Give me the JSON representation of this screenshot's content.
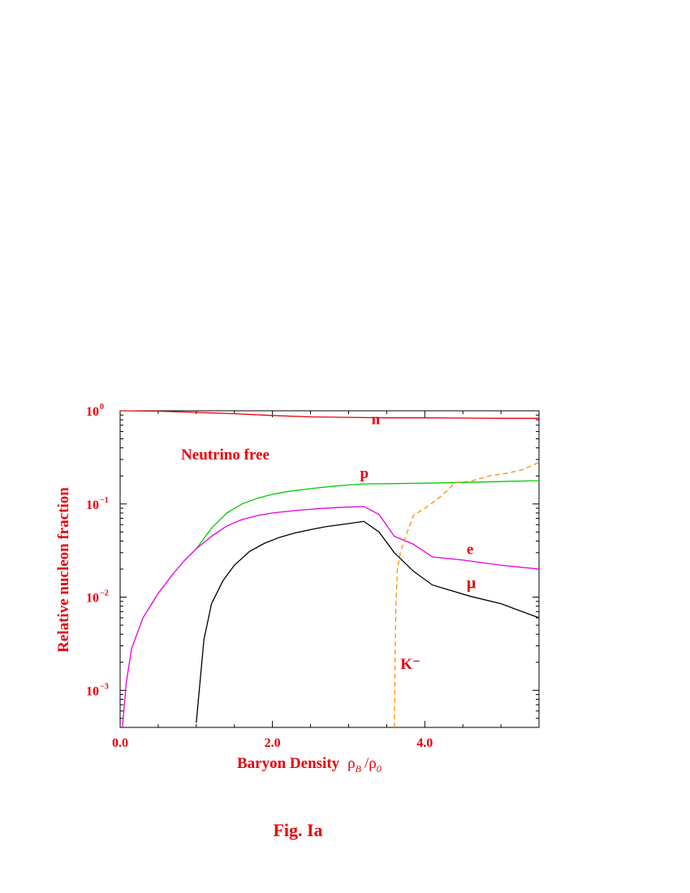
{
  "figure_caption": "Fig. Ia",
  "chart_data": {
    "type": "line",
    "xlabel": "Baryon Density",
    "xlabel_symbol": {
      "rho": "ρ",
      "B": "B",
      "slash": "/",
      "zero": "0"
    },
    "ylabel": "Relative nucleon fraction",
    "xlim": [
      0,
      5.5
    ],
    "ylim": [
      0.0004,
      1
    ],
    "yscale": "log",
    "grid": false,
    "x_ticks": [
      {
        "value": 0,
        "label": "0.0"
      },
      {
        "value": 2,
        "label": "2.0"
      },
      {
        "value": 4,
        "label": "4.0"
      }
    ],
    "y_ticks": [
      {
        "value": 1,
        "base": "10",
        "exp": "0"
      },
      {
        "value": 0.1,
        "base": "10",
        "exp": "−1"
      },
      {
        "value": 0.01,
        "base": "10",
        "exp": "−2"
      },
      {
        "value": 0.001,
        "base": "10",
        "exp": "−3"
      }
    ],
    "annotation": {
      "text": "Neutrino free",
      "x": 0.8,
      "y": 0.3
    },
    "series": [
      {
        "name": "n",
        "color": "#e8000b",
        "dash": "none",
        "label": {
          "x": 3.3,
          "y": 0.72
        },
        "points": [
          [
            0,
            1
          ],
          [
            0.5,
            0.99
          ],
          [
            1.0,
            0.96
          ],
          [
            1.5,
            0.93
          ],
          [
            2.0,
            0.89
          ],
          [
            2.5,
            0.86
          ],
          [
            3.0,
            0.85
          ],
          [
            3.5,
            0.84
          ],
          [
            4.0,
            0.84
          ],
          [
            4.5,
            0.835
          ],
          [
            5.0,
            0.83
          ],
          [
            5.5,
            0.83
          ]
        ]
      },
      {
        "name": "p",
        "color": "#00cc00",
        "dash": "none",
        "label": {
          "x": 3.15,
          "y": 0.19
        },
        "points": [
          [
            1.0,
            0.033
          ],
          [
            1.2,
            0.055
          ],
          [
            1.4,
            0.08
          ],
          [
            1.6,
            0.1
          ],
          [
            1.8,
            0.115
          ],
          [
            2.0,
            0.127
          ],
          [
            2.2,
            0.136
          ],
          [
            2.5,
            0.146
          ],
          [
            2.8,
            0.155
          ],
          [
            3.0,
            0.16
          ],
          [
            3.2,
            0.164
          ],
          [
            3.5,
            0.165
          ],
          [
            4.0,
            0.167
          ],
          [
            4.5,
            0.17
          ],
          [
            5.0,
            0.174
          ],
          [
            5.5,
            0.178
          ]
        ]
      },
      {
        "name": "e",
        "color": "#e000e0",
        "dash": "none",
        "label": {
          "x": 4.55,
          "y": 0.029
        },
        "points": [
          [
            0.03,
            0.0004
          ],
          [
            0.08,
            0.0012
          ],
          [
            0.15,
            0.0028
          ],
          [
            0.3,
            0.006
          ],
          [
            0.5,
            0.011
          ],
          [
            0.7,
            0.018
          ],
          [
            0.85,
            0.025
          ],
          [
            1.0,
            0.033
          ],
          [
            1.2,
            0.045
          ],
          [
            1.4,
            0.058
          ],
          [
            1.6,
            0.068
          ],
          [
            1.8,
            0.075
          ],
          [
            2.0,
            0.08
          ],
          [
            2.3,
            0.085
          ],
          [
            2.6,
            0.089
          ],
          [
            2.9,
            0.092
          ],
          [
            3.2,
            0.094
          ],
          [
            3.4,
            0.077
          ],
          [
            3.6,
            0.045
          ],
          [
            3.85,
            0.037
          ],
          [
            4.1,
            0.027
          ],
          [
            4.5,
            0.025
          ],
          [
            5.0,
            0.022
          ],
          [
            5.5,
            0.02
          ]
        ]
      },
      {
        "name": "μ",
        "color": "#000000",
        "dash": "none",
        "label": {
          "x": 4.55,
          "y": 0.0125
        },
        "points": [
          [
            1.0,
            0.00045
          ],
          [
            1.1,
            0.0035
          ],
          [
            1.2,
            0.0085
          ],
          [
            1.35,
            0.015
          ],
          [
            1.5,
            0.022
          ],
          [
            1.7,
            0.031
          ],
          [
            1.9,
            0.038
          ],
          [
            2.1,
            0.044
          ],
          [
            2.3,
            0.049
          ],
          [
            2.5,
            0.053
          ],
          [
            2.7,
            0.057
          ],
          [
            2.9,
            0.06
          ],
          [
            3.2,
            0.065
          ],
          [
            3.4,
            0.05
          ],
          [
            3.6,
            0.03
          ],
          [
            3.85,
            0.019
          ],
          [
            4.1,
            0.0135
          ],
          [
            4.6,
            0.0102
          ],
          [
            5.0,
            0.0085
          ],
          [
            5.5,
            0.006
          ]
        ]
      },
      {
        "name": "K⁻",
        "color": "#ff8c00",
        "dash": "6,4",
        "label": {
          "x": 3.68,
          "y": 0.0017
        },
        "points": [
          [
            3.6,
            0.0004
          ],
          [
            3.61,
            0.002
          ],
          [
            3.62,
            0.008
          ],
          [
            3.64,
            0.02
          ],
          [
            3.68,
            0.03
          ],
          [
            3.75,
            0.045
          ],
          [
            3.85,
            0.075
          ],
          [
            4.0,
            0.09
          ],
          [
            4.15,
            0.11
          ],
          [
            4.3,
            0.14
          ],
          [
            4.4,
            0.17
          ],
          [
            4.6,
            0.175
          ],
          [
            4.85,
            0.2
          ],
          [
            5.1,
            0.215
          ],
          [
            5.3,
            0.235
          ],
          [
            5.5,
            0.28
          ]
        ]
      }
    ]
  }
}
